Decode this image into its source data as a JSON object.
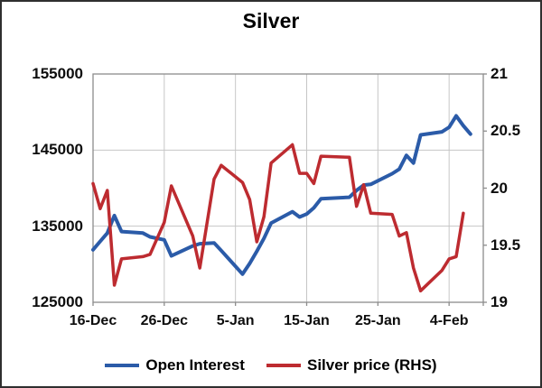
{
  "frame": {
    "background": "#ffffff",
    "border_color": "#2f2f2f"
  },
  "chart_data": {
    "type": "line",
    "title": "Silver",
    "grid_color": "#c6c6c6",
    "axis_line_color": "#8c8c8c",
    "text_color": "#000000",
    "x_tick_labels": [
      "16-Dec",
      "26-Dec",
      "5-Jan",
      "15-Jan",
      "25-Jan",
      "4-Feb"
    ],
    "x_tick_days": [
      0,
      10,
      20,
      30,
      40,
      50
    ],
    "x_domain_days": [
      0,
      54.8
    ],
    "left_axis": {
      "tick_labels": [
        "155000",
        "145000",
        "135000",
        "125000"
      ],
      "ticks": [
        155000,
        145000,
        135000,
        125000
      ],
      "range": [
        125000,
        155000
      ]
    },
    "right_axis": {
      "tick_labels": [
        "21",
        "20.5",
        "20",
        "19.5",
        "19"
      ],
      "ticks": [
        21,
        20.5,
        20,
        19.5,
        19
      ],
      "range": [
        19,
        21
      ]
    },
    "legend_position": "bottom",
    "series": [
      {
        "name": "Open Interest",
        "axis": "left",
        "color": "#2b5ba8",
        "stroke_width": 4,
        "points": [
          [
            0,
            131900
          ],
          [
            1,
            133000
          ],
          [
            2,
            134100
          ],
          [
            3,
            136400
          ],
          [
            4,
            134300
          ],
          [
            7,
            134100
          ],
          [
            8,
            133600
          ],
          [
            10,
            133200
          ],
          [
            11,
            131100
          ],
          [
            14,
            132400
          ],
          [
            15,
            132700
          ],
          [
            17,
            132800
          ],
          [
            18,
            131800
          ],
          [
            21,
            128700
          ],
          [
            22,
            130100
          ],
          [
            23,
            131700
          ],
          [
            24,
            133400
          ],
          [
            25,
            135400
          ],
          [
            28,
            136900
          ],
          [
            29,
            136200
          ],
          [
            30,
            136600
          ],
          [
            31,
            137400
          ],
          [
            32,
            138600
          ],
          [
            36,
            138800
          ],
          [
            37,
            139700
          ],
          [
            38,
            140400
          ],
          [
            39,
            140500
          ],
          [
            42,
            141900
          ],
          [
            43,
            142500
          ],
          [
            44,
            144300
          ],
          [
            45,
            143300
          ],
          [
            46,
            147000
          ],
          [
            49,
            147400
          ],
          [
            50,
            148000
          ],
          [
            51,
            149500
          ],
          [
            52,
            148200
          ],
          [
            53,
            147100
          ]
        ]
      },
      {
        "name": "Silver price (RHS)",
        "axis": "right",
        "color": "#bd2b30",
        "stroke_width": 3.5,
        "points": [
          [
            0,
            20.04
          ],
          [
            1,
            19.82
          ],
          [
            2,
            19.98
          ],
          [
            3,
            19.15
          ],
          [
            4,
            19.38
          ],
          [
            7,
            19.4
          ],
          [
            8,
            19.42
          ],
          [
            10,
            19.7
          ],
          [
            11,
            20.02
          ],
          [
            14,
            19.58
          ],
          [
            15,
            19.3
          ],
          [
            17,
            20.08
          ],
          [
            18,
            20.2
          ],
          [
            21,
            20.05
          ],
          [
            22,
            19.9
          ],
          [
            23,
            19.53
          ],
          [
            24,
            19.75
          ],
          [
            25,
            20.22
          ],
          [
            28,
            20.38
          ],
          [
            29,
            20.13
          ],
          [
            30,
            20.13
          ],
          [
            31,
            20.04
          ],
          [
            32,
            20.28
          ],
          [
            36,
            20.27
          ],
          [
            37,
            19.84
          ],
          [
            38,
            20.03
          ],
          [
            39,
            19.78
          ],
          [
            42,
            19.77
          ],
          [
            43,
            19.58
          ],
          [
            44,
            19.61
          ],
          [
            45,
            19.3
          ],
          [
            46,
            19.1
          ],
          [
            49,
            19.28
          ],
          [
            50,
            19.38
          ],
          [
            51,
            19.4
          ],
          [
            52,
            19.78
          ]
        ]
      }
    ]
  }
}
